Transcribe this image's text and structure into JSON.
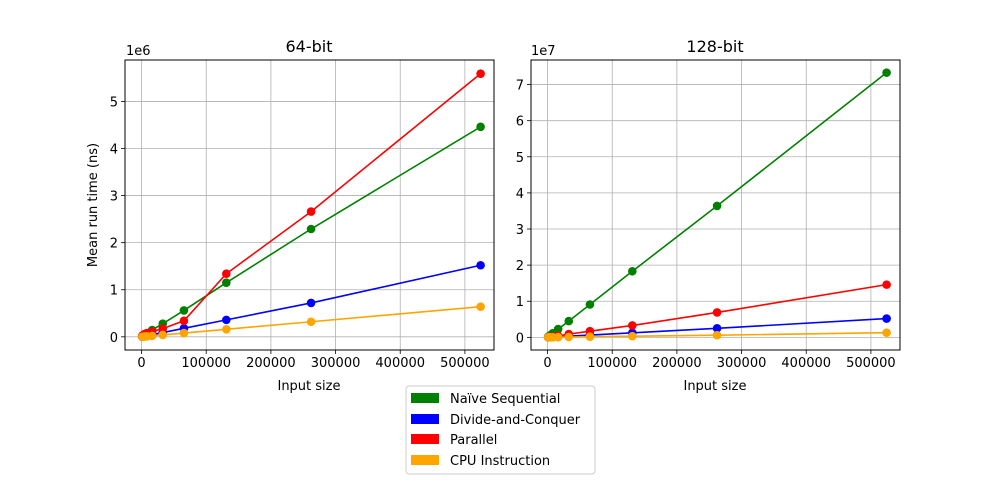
{
  "legend": {
    "items": [
      {
        "label": "Naïve Sequential",
        "color": "#008000"
      },
      {
        "label": "Divide-and-Conquer",
        "color": "#0000ff"
      },
      {
        "label": "Parallel",
        "color": "#ff0000"
      },
      {
        "label": "CPU Instruction",
        "color": "#ffa500"
      }
    ]
  },
  "chart_data": [
    {
      "type": "line",
      "title": "64-bit",
      "xlabel": "Input size",
      "ylabel": "Mean run time (ns)",
      "y_offset_label": "1e6",
      "xlim": [
        -25600,
        545000
      ],
      "ylim": [
        -280000,
        5880000
      ],
      "x_ticks": [
        0,
        100000,
        200000,
        300000,
        400000,
        500000
      ],
      "x_tick_labels": [
        "0",
        "100000",
        "200000",
        "300000",
        "400000",
        "500000"
      ],
      "y_ticks": [
        0,
        1000000,
        2000000,
        3000000,
        4000000,
        5000000
      ],
      "y_tick_labels": [
        "0",
        "1",
        "2",
        "3",
        "4",
        "5"
      ],
      "grid": true,
      "x": [
        1024,
        2048,
        4096,
        8192,
        16384,
        32768,
        65536,
        131072,
        262144,
        524288
      ],
      "series": [
        {
          "name": "Naïve Sequential",
          "color": "#008000",
          "values": [
            9000,
            18000,
            36000,
            72000,
            145000,
            280000,
            560000,
            1150000,
            2290000,
            4460000
          ]
        },
        {
          "name": "Divide-and-Conquer",
          "color": "#0000ff",
          "values": [
            3000,
            6000,
            12000,
            24000,
            47000,
            90000,
            180000,
            360000,
            720000,
            1520000
          ]
        },
        {
          "name": "Parallel",
          "color": "#ff0000",
          "values": [
            20000,
            35000,
            55000,
            80000,
            110000,
            175000,
            340000,
            1340000,
            2660000,
            5590000
          ]
        },
        {
          "name": "CPU Instruction",
          "color": "#ffa500",
          "values": [
            1000,
            2500,
            5000,
            10000,
            20000,
            40000,
            80000,
            160000,
            320000,
            640000
          ]
        }
      ]
    },
    {
      "type": "line",
      "title": "128-bit",
      "xlabel": "Input size",
      "ylabel": "",
      "y_offset_label": "1e7",
      "xlim": [
        -25600,
        545000
      ],
      "ylim": [
        -3500000,
        76800000
      ],
      "x_ticks": [
        0,
        100000,
        200000,
        300000,
        400000,
        500000
      ],
      "x_tick_labels": [
        "0",
        "100000",
        "200000",
        "300000",
        "400000",
        "500000"
      ],
      "y_ticks": [
        0,
        10000000,
        20000000,
        30000000,
        40000000,
        50000000,
        60000000,
        70000000
      ],
      "y_tick_labels": [
        "0",
        "1",
        "2",
        "3",
        "4",
        "5",
        "6",
        "7"
      ],
      "grid": true,
      "x": [
        1024,
        2048,
        4096,
        8192,
        16384,
        32768,
        65536,
        131072,
        262144,
        524288
      ],
      "series": [
        {
          "name": "Naïve Sequential",
          "color": "#008000",
          "values": [
            140000,
            290000,
            580000,
            1150000,
            2300000,
            4500000,
            9100000,
            18300000,
            36400000,
            73300000
          ]
        },
        {
          "name": "Divide-and-Conquer",
          "color": "#0000ff",
          "values": [
            10000,
            20000,
            40000,
            80000,
            160000,
            320000,
            640000,
            1250000,
            2500000,
            5200000
          ]
        },
        {
          "name": "Parallel",
          "color": "#ff0000",
          "values": [
            30000,
            60000,
            110000,
            220000,
            450000,
            900000,
            1700000,
            3300000,
            6900000,
            14600000
          ]
        },
        {
          "name": "CPU Instruction",
          "color": "#ffa500",
          "values": [
            3000,
            6000,
            12000,
            24000,
            48000,
            95000,
            190000,
            330000,
            600000,
            1300000
          ]
        }
      ]
    }
  ]
}
